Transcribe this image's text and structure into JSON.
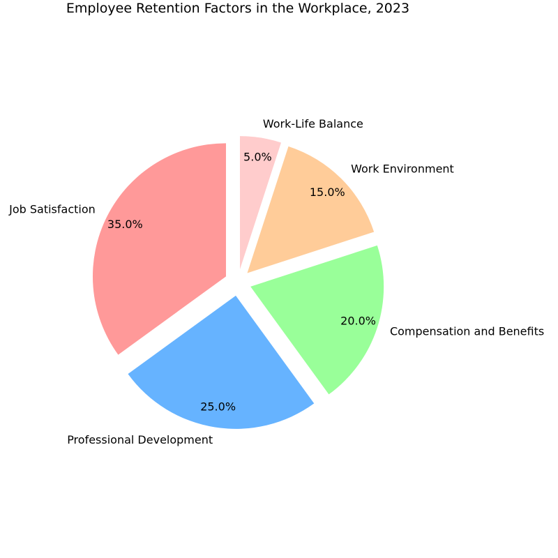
{
  "chart_data": {
    "type": "pie",
    "title": "Employee Retention Factors in the Workplace, 2023",
    "slices": [
      {
        "label": "Job Satisfaction",
        "value": 35.0,
        "pct_label": "35.0%",
        "color": "#ff9999",
        "exploded": true
      },
      {
        "label": "Professional Development",
        "value": 25.0,
        "pct_label": "25.0%",
        "color": "#66b3ff",
        "exploded": true
      },
      {
        "label": "Compensation and Benefits",
        "value": 20.0,
        "pct_label": "20.0%",
        "color": "#99ff99",
        "exploded": true
      },
      {
        "label": "Work Environment",
        "value": 15.0,
        "pct_label": "15.0%",
        "color": "#ffcc99",
        "exploded": true
      },
      {
        "label": "Work-Life Balance",
        "value": 5.0,
        "pct_label": "5.0%",
        "color": "#ffcccc",
        "exploded": true
      }
    ],
    "start_angle_deg": 90,
    "direction": "counterclockwise"
  }
}
